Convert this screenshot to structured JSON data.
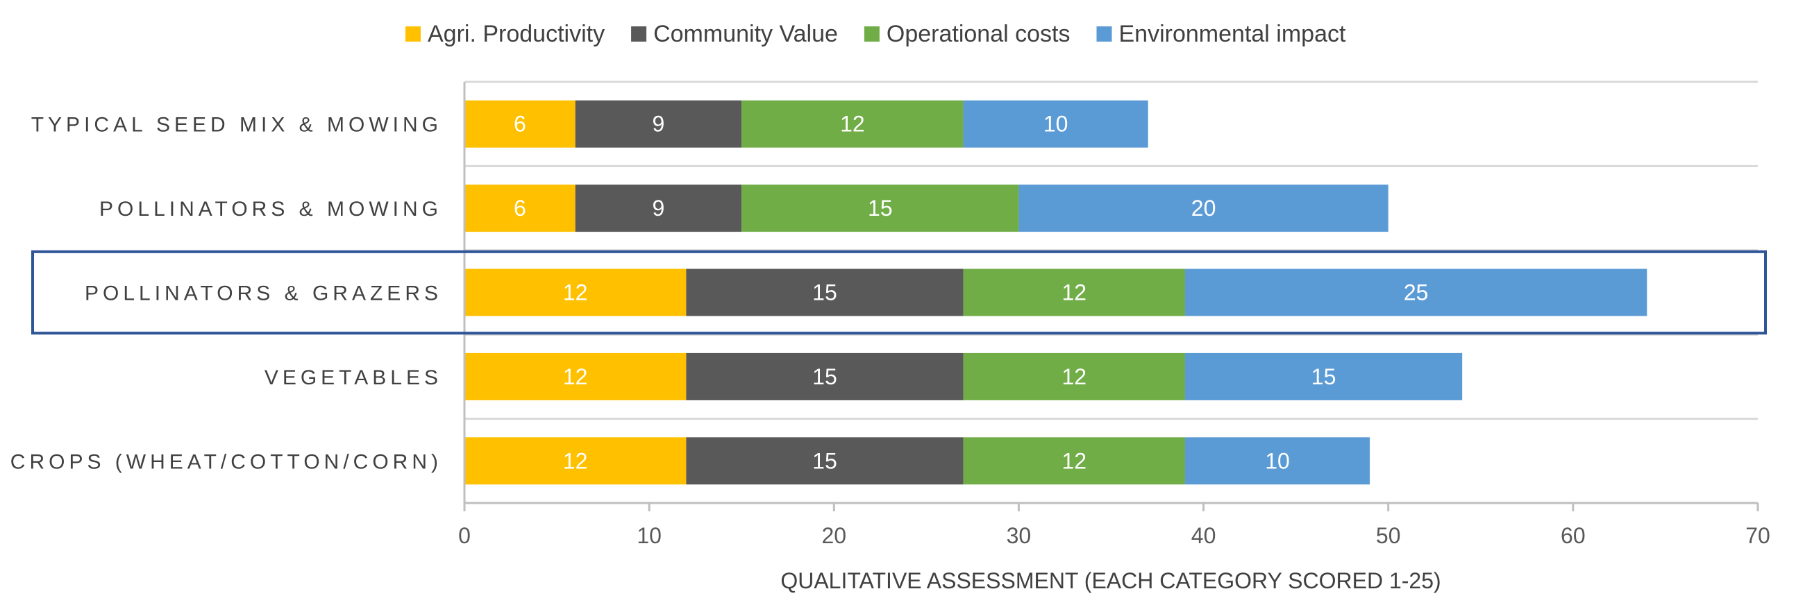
{
  "chart_data": {
    "type": "bar",
    "orientation": "horizontal",
    "stacked": true,
    "categories": [
      "TYPICAL SEED MIX & MOWING",
      "POLLINATORS & MOWING",
      "POLLINATORS & GRAZERS",
      "VEGETABLES",
      "CROPS (WHEAT/COTTON/CORN)"
    ],
    "series": [
      {
        "name": "Agri. Productivity",
        "color": "#FFC000",
        "values": [
          6,
          6,
          12,
          12,
          12
        ]
      },
      {
        "name": "Community Value",
        "color": "#595959",
        "values": [
          9,
          9,
          15,
          15,
          15
        ]
      },
      {
        "name": "Operational costs",
        "color": "#70AD47",
        "values": [
          12,
          15,
          12,
          12,
          12
        ]
      },
      {
        "name": "Environmental impact",
        "color": "#5B9BD5",
        "values": [
          10,
          20,
          25,
          15,
          10
        ]
      }
    ],
    "xlabel": "QUALITATIVE ASSESSMENT (EACH CATEGORY SCORED 1-25)",
    "xlim": [
      0,
      70
    ],
    "xticks": [
      0,
      10,
      20,
      30,
      40,
      50,
      60,
      70
    ],
    "legend_position": "top",
    "grid": "horizontal separators between categories",
    "highlighted_category": "POLLINATORS & GRAZERS",
    "highlight_color": "#2F5597"
  }
}
